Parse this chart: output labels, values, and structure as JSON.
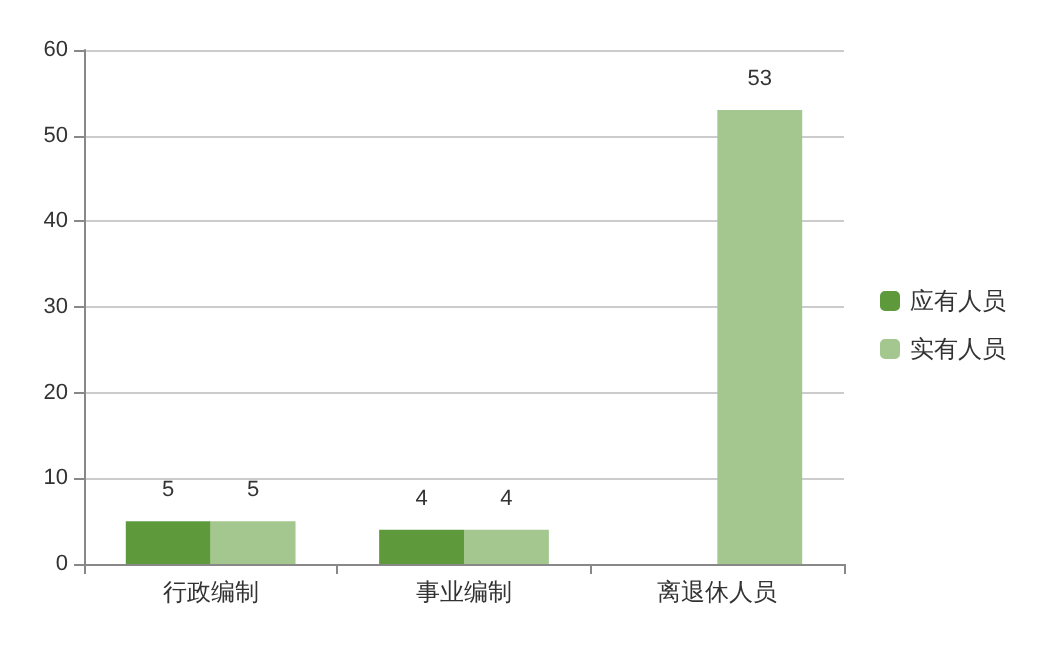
{
  "chart_data": {
    "type": "bar",
    "categories": [
      "行政编制",
      "事业编制",
      "离退休人员"
    ],
    "series": [
      {
        "name": "应有人员",
        "color": "#5e9a3c",
        "values": [
          5,
          4,
          null
        ]
      },
      {
        "name": "实有人员",
        "color": "#a3c78f",
        "values": [
          5,
          4,
          53
        ]
      }
    ],
    "ylim": [
      0,
      60
    ],
    "yticks": [
      0,
      10,
      20,
      30,
      40,
      50,
      60
    ],
    "grid": "y",
    "legend": "right",
    "data_labels": true
  }
}
